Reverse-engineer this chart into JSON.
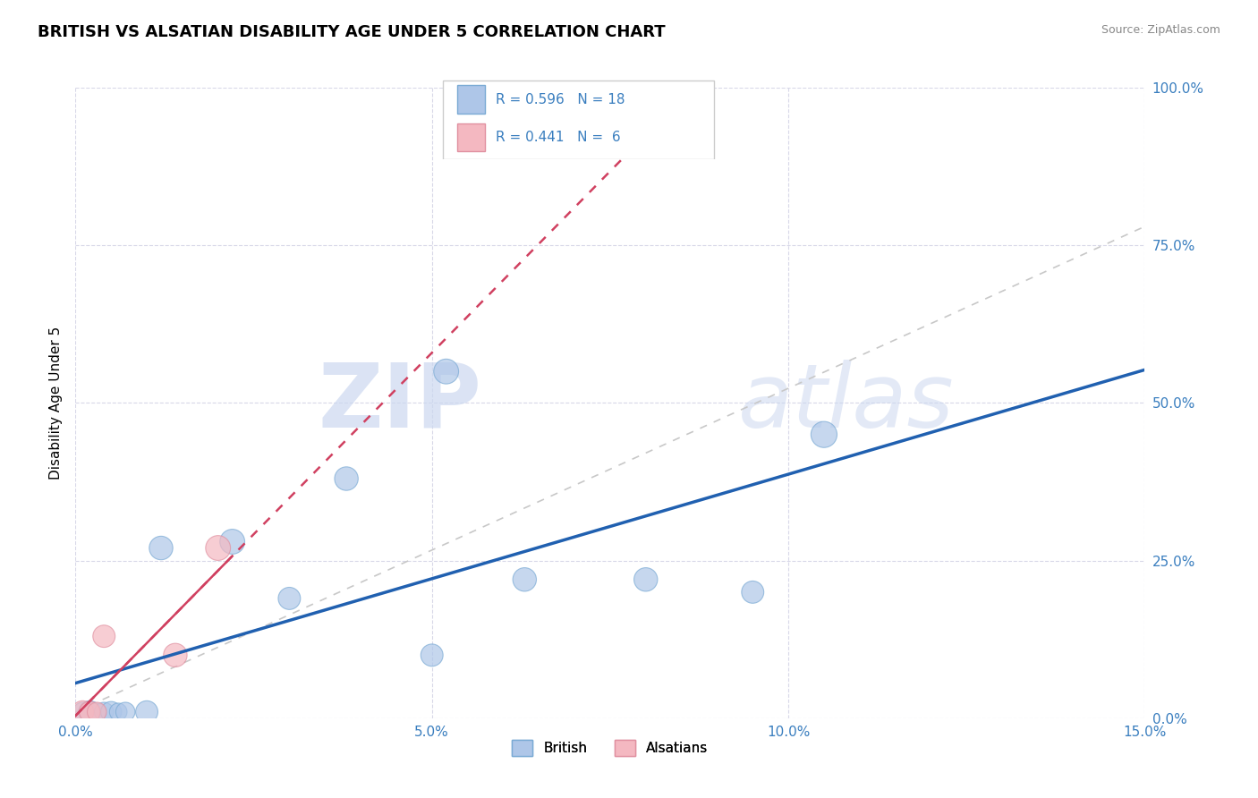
{
  "title": "BRITISH VS ALSATIAN DISABILITY AGE UNDER 5 CORRELATION CHART",
  "source": "Source: ZipAtlas.com",
  "ylabel": "Disability Age Under 5",
  "xlim": [
    0.0,
    0.15
  ],
  "ylim": [
    0.0,
    1.0
  ],
  "xtick_labels": [
    "0.0%",
    "5.0%",
    "10.0%",
    "15.0%"
  ],
  "xtick_vals": [
    0.0,
    0.05,
    0.1,
    0.15
  ],
  "ytick_labels": [
    "0.0%",
    "25.0%",
    "50.0%",
    "75.0%",
    "100.0%"
  ],
  "ytick_vals": [
    0.0,
    0.25,
    0.5,
    0.75,
    1.0
  ],
  "british_x": [
    0.001,
    0.002,
    0.003,
    0.004,
    0.005,
    0.006,
    0.007,
    0.01,
    0.012,
    0.022,
    0.03,
    0.038,
    0.05,
    0.052,
    0.063,
    0.08,
    0.095,
    0.105
  ],
  "british_y": [
    0.01,
    0.01,
    0.01,
    0.01,
    0.01,
    0.01,
    0.01,
    0.01,
    0.27,
    0.28,
    0.19,
    0.38,
    0.1,
    0.55,
    0.22,
    0.22,
    0.2,
    0.45
  ],
  "british_sizes": [
    60,
    80,
    50,
    60,
    70,
    50,
    60,
    80,
    90,
    100,
    80,
    90,
    80,
    100,
    90,
    90,
    80,
    110
  ],
  "alsatian_x": [
    0.001,
    0.002,
    0.003,
    0.004,
    0.014,
    0.02
  ],
  "alsatian_y": [
    0.01,
    0.01,
    0.01,
    0.13,
    0.1,
    0.27
  ],
  "alsatian_sizes": [
    80,
    70,
    60,
    80,
    90,
    100
  ],
  "british_color": "#aec6e8",
  "alsatian_color": "#f4b8c1",
  "british_edge_color": "#7aaad4",
  "alsatian_edge_color": "#e090a0",
  "regression_blue_color": "#2060b0",
  "regression_pink_color": "#d04060",
  "diagonal_color": "#c8c8c8",
  "R_british": 0.596,
  "N_british": 18,
  "R_alsatian": 0.441,
  "N_alsatian": 6,
  "grid_color": "#d8d8e8",
  "background_color": "#ffffff",
  "title_fontsize": 13,
  "label_fontsize": 11,
  "tick_fontsize": 11,
  "watermark_color": "#ccd8f0"
}
